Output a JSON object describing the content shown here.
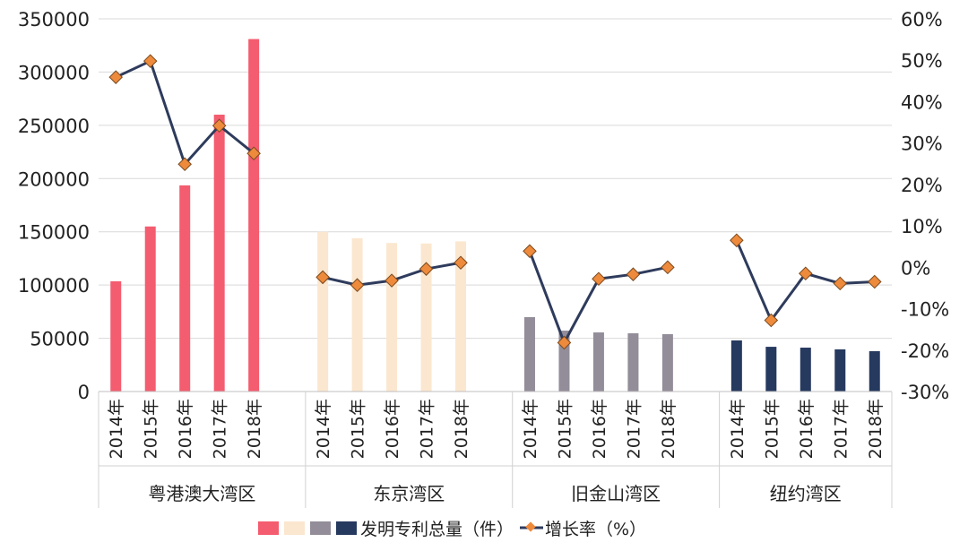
{
  "chart_data": {
    "type": "bar+line",
    "groups": [
      "粤港澳大湾区",
      "东京湾区",
      "旧金山湾区",
      "纽约湾区"
    ],
    "years": [
      "2014年",
      "2015年",
      "2016年",
      "2017年",
      "2018年"
    ],
    "bar_colors": [
      "#f45c6f",
      "#fbe7cf",
      "#938d99",
      "#26395f"
    ],
    "line_color": "#2e3b5c",
    "marker_color": "#ee8a3c",
    "series": [
      {
        "name": "发明专利总量（件）",
        "axis": "left",
        "values": [
          [
            103500,
            155000,
            193600,
            260000,
            331000
          ],
          [
            150000,
            144000,
            139500,
            139000,
            141000
          ],
          [
            69900,
            57200,
            55500,
            54700,
            53900
          ],
          [
            48000,
            42000,
            41200,
            39600,
            37900
          ]
        ]
      },
      {
        "name": "增长率（%）",
        "axis": "right",
        "values": [
          [
            45.9,
            49.8,
            24.9,
            34.2,
            27.5
          ],
          [
            -2.4,
            -4.3,
            -3.2,
            -0.4,
            1.1
          ],
          [
            3.9,
            -18.2,
            -2.8,
            -1.7,
            0.0
          ],
          [
            6.5,
            -12.8,
            -1.5,
            -3.9,
            -3.5
          ]
        ]
      }
    ],
    "left_axis": {
      "min": 0,
      "max": 350000,
      "ticks": [
        "0",
        "50000",
        "100000",
        "150000",
        "200000",
        "250000",
        "300000",
        "350000"
      ]
    },
    "right_axis": {
      "min": -30,
      "max": 60,
      "ticks": [
        "-30%",
        "-20%",
        "-10%",
        "0%",
        "10%",
        "20%",
        "30%",
        "40%",
        "50%",
        "60%"
      ]
    },
    "grid": true,
    "legend": {
      "placement": "bottom",
      "bar_label": "发明专利总量（件）",
      "line_label": "增长率（%）"
    }
  }
}
